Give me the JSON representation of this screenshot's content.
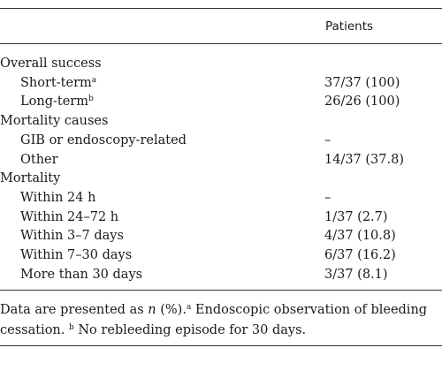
{
  "table": {
    "header": "Patients",
    "rows": [
      {
        "label": "Overall success",
        "value": "",
        "indent": false,
        "sup": ""
      },
      {
        "label": "Short-term",
        "sup": "a",
        "value": "37/37 (100)",
        "indent": true
      },
      {
        "label": "Long-term",
        "sup": "b",
        "value": "26/26 (100)",
        "indent": true
      },
      {
        "label": "Mortality causes",
        "value": "",
        "indent": false,
        "sup": ""
      },
      {
        "label": "GIB or endoscopy-related",
        "value": "–",
        "indent": true,
        "sup": ""
      },
      {
        "label": "Other",
        "value": "14/37 (37.8)",
        "indent": true,
        "sup": ""
      },
      {
        "label": "Mortality",
        "value": "",
        "indent": false,
        "sup": ""
      },
      {
        "label": "Within 24 h",
        "value": "–",
        "indent": true,
        "sup": ""
      },
      {
        "label": "Within 24–72 h",
        "value": "1/37 (2.7)",
        "indent": true,
        "sup": ""
      },
      {
        "label": "Within 3–7 days",
        "value": "4/37 (10.8)",
        "indent": true,
        "sup": ""
      },
      {
        "label": "Within 7–30 days",
        "value": "6/37 (16.2)",
        "indent": true,
        "sup": ""
      },
      {
        "label": "More than 30 days",
        "value": "3/37 (8.1)",
        "indent": true,
        "sup": ""
      }
    ]
  },
  "footnote": {
    "part1": "Data are presented as ",
    "n": "n",
    "part2": " (%).",
    "a_mark": "a",
    "a_text": " Endoscopic observation of bleeding cessation. ",
    "b_mark": "b",
    "b_text": " No rebleeding episode for 30 days."
  }
}
